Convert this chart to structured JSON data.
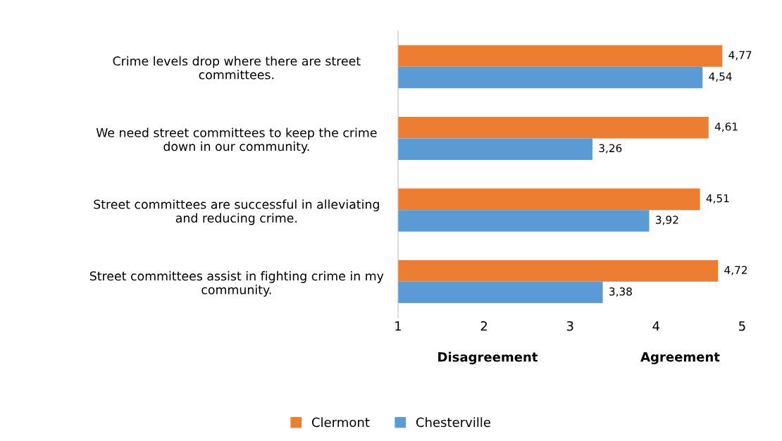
{
  "chart_data": {
    "type": "bar",
    "orientation": "horizontal",
    "categories": [
      "Crime levels drop where there are street\ncommittees.",
      "We need street committees to keep the crime\ndown in our community.",
      "Street committees are successful in alleviating\nand reducing crime.",
      "Street committees assist in fighting crime in my\ncommunity."
    ],
    "series": [
      {
        "name": "Clermont",
        "color": "#ed7d31",
        "values": [
          4.77,
          4.61,
          4.51,
          4.72
        ],
        "value_labels": [
          "4,77",
          "4,61",
          "4,51",
          "4,72"
        ]
      },
      {
        "name": "Chesterville",
        "color": "#5b9bd5",
        "values": [
          4.54,
          3.26,
          3.92,
          3.38
        ],
        "value_labels": [
          "4,54",
          "3,26",
          "3,92",
          "3,38"
        ]
      }
    ],
    "xlim": [
      1,
      5
    ],
    "xticks": [
      1,
      2,
      3,
      4,
      5
    ],
    "annotations": [
      "Disagreement",
      "Agreement"
    ],
    "grid": false,
    "legend": "bottom"
  }
}
